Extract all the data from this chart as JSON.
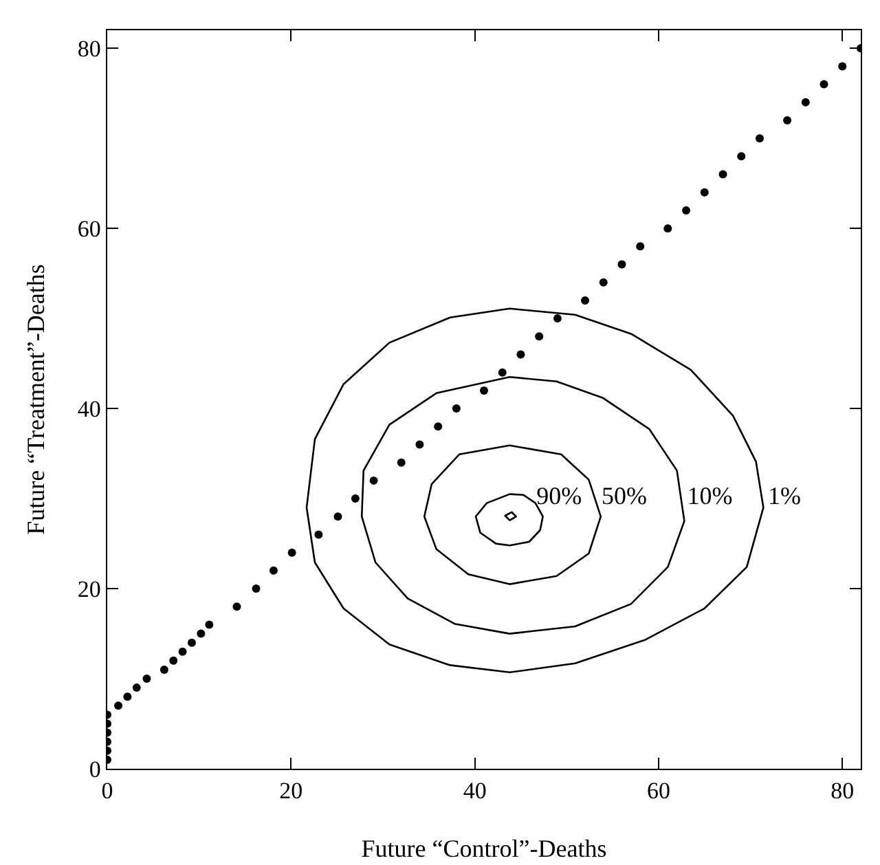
{
  "chart_data": {
    "type": "scatter",
    "xlabel": "Future “Control”-Deaths",
    "ylabel": "Future “Treatment”-Deaths",
    "xlim": [
      0,
      82
    ],
    "ylim": [
      0,
      82
    ],
    "xticks": [
      0,
      20,
      40,
      60,
      80
    ],
    "yticks": [
      0,
      20,
      40,
      60,
      80
    ],
    "grid": false,
    "series": [
      {
        "marker": "circle",
        "color": "#000000",
        "x": [
          0,
          0,
          0,
          0,
          0,
          0,
          1.2,
          2.2,
          3.2,
          4.3,
          6.2,
          7.2,
          8.2,
          9.2,
          10.2,
          11.1,
          14.1,
          16.2,
          18.1,
          20.1,
          23,
          25.1,
          27,
          29,
          32,
          34,
          36,
          38,
          41,
          43,
          45,
          47,
          49,
          52,
          54,
          56,
          58,
          61,
          63,
          65,
          67,
          69,
          71,
          74,
          76,
          78,
          80,
          82
        ],
        "values": [
          1,
          2,
          3,
          4,
          5,
          6,
          7,
          8,
          9,
          10,
          11,
          12,
          13,
          14,
          15,
          16,
          18,
          20,
          22,
          24,
          26,
          28,
          30,
          32,
          34,
          36,
          38,
          40,
          42,
          44,
          46,
          48,
          50,
          52,
          54,
          56,
          58,
          60,
          62,
          64,
          66,
          68,
          70,
          72,
          74,
          76,
          78,
          80
        ]
      }
    ],
    "annotations": [
      "90%",
      "50%",
      "10%",
      "1%"
    ]
  }
}
